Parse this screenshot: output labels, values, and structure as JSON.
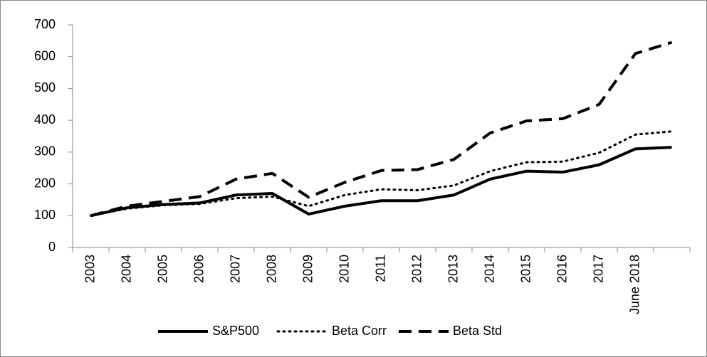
{
  "chart_data": {
    "type": "line",
    "categories": [
      "2003",
      "2004",
      "2005",
      "2006",
      "2007",
      "2008",
      "2009",
      "2010",
      "2011",
      "2012",
      "2013",
      "2014",
      "2015",
      "2016",
      "2017",
      "June 2018",
      null
    ],
    "series": [
      {
        "name": "S&P500",
        "color": "#000000",
        "dash": "solid",
        "values": [
          100,
          125,
          135,
          140,
          165,
          170,
          105,
          130,
          147,
          147,
          165,
          215,
          240,
          237,
          260,
          310,
          315
        ]
      },
      {
        "name": "Beta Corr",
        "color": "#000000",
        "dash": "dotted",
        "values": [
          100,
          122,
          133,
          137,
          155,
          160,
          130,
          165,
          183,
          180,
          195,
          240,
          268,
          270,
          298,
          355,
          365
        ]
      },
      {
        "name": "Beta Std",
        "color": "#000000",
        "dash": "dashed",
        "values": [
          100,
          130,
          145,
          160,
          215,
          233,
          158,
          205,
          242,
          245,
          277,
          360,
          398,
          405,
          450,
          610,
          645
        ]
      }
    ],
    "ylim": [
      0,
      700
    ],
    "yticks": [
      0,
      100,
      200,
      300,
      400,
      500,
      600,
      700
    ],
    "grid": false,
    "legend": "bottom"
  }
}
